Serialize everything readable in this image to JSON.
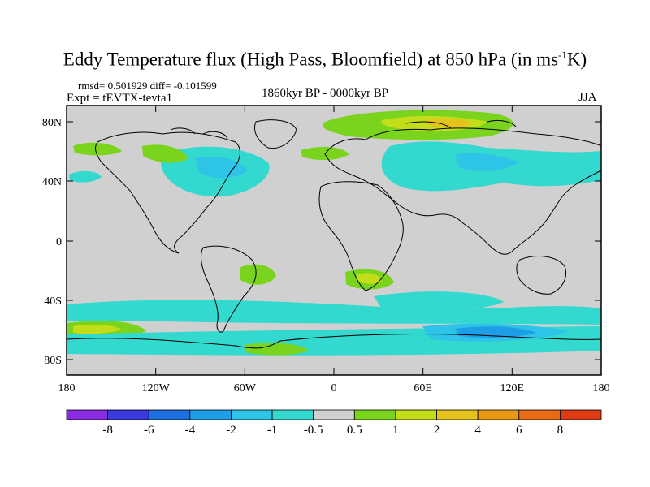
{
  "title": {
    "main": "Eddy Temperature flux (High Pass, Bloomfield) at 850 hPa (in ms",
    "sup": "-1",
    "tail": "K)"
  },
  "subtitle": {
    "stats": "rmsd= 0.501929 diff= -0.101599",
    "experiment": "Expt = tEVTX-tevta1",
    "period": "1860kyr BP - 0000kyr BP",
    "season": "JJA"
  },
  "axes": {
    "lat_labels": [
      "80N",
      "40N",
      "0",
      "40S",
      "80S"
    ],
    "lon_labels": [
      "180",
      "120W",
      "60W",
      "0",
      "60E",
      "120E",
      "180"
    ]
  },
  "colorbar": {
    "labels": [
      "-8",
      "-6",
      "-4",
      "-2",
      "-1",
      "-0.5",
      "0.5",
      "1",
      "2",
      "4",
      "6",
      "8"
    ],
    "colors": [
      "#8a2be2",
      "#3a3ae0",
      "#1e6fe0",
      "#1e9ee6",
      "#2ec4e8",
      "#33d8cf",
      "#d0d0d0",
      "#7ad31c",
      "#c4dd1a",
      "#e6c21c",
      "#e89a14",
      "#e86c14",
      "#e03c14"
    ]
  },
  "colors": {
    "land_ocean_background": "#d0d0d0",
    "coastline": "#000000"
  }
}
